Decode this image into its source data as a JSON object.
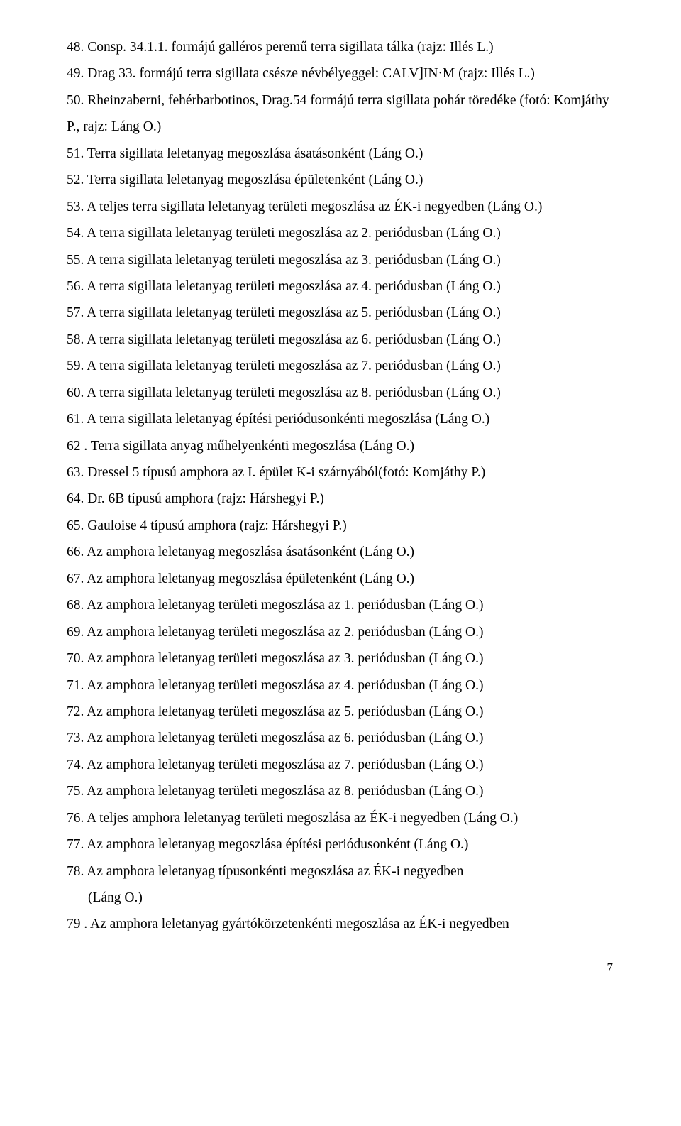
{
  "entries": [
    {
      "text": "48. Consp. 34.1.1. formájú galléros peremű terra sigillata tálka (rajz: Illés L.)"
    },
    {
      "text": "49. Drag 33. formájú terra sigillata csésze névbélyeggel: CALV]IN·M (rajz: Illés L.)"
    },
    {
      "text": "50. Rheinzaberni, fehérbarbotinos, Drag.54 formájú terra sigillata pohár töredéke (fotó: Komjáthy P., rajz: Láng O.)"
    },
    {
      "text": "51. Terra sigillata leletanyag megoszlása ásatásonként (Láng O.)"
    },
    {
      "text": "52. Terra sigillata leletanyag megoszlása épületenként (Láng O.)"
    },
    {
      "text": "53. A teljes terra sigillata leletanyag területi megoszlása az ÉK-i negyedben (Láng O.)"
    },
    {
      "text": "54. A terra sigillata leletanyag területi megoszlása az 2. periódusban (Láng O.)"
    },
    {
      "text": "55. A terra sigillata leletanyag területi megoszlása az 3. periódusban (Láng O.)"
    },
    {
      "text": "56. A terra sigillata leletanyag területi megoszlása az 4. periódusban (Láng O.)"
    },
    {
      "text": "57. A terra sigillata leletanyag területi megoszlása az 5. periódusban (Láng O.)"
    },
    {
      "text": "58. A terra sigillata leletanyag területi megoszlása az 6. periódusban (Láng O.)"
    },
    {
      "text": "59. A terra sigillata leletanyag területi megoszlása az 7. periódusban (Láng O.)"
    },
    {
      "text": "60. A terra sigillata leletanyag területi megoszlása az 8. periódusban (Láng O.)"
    },
    {
      "text": "61. A terra sigillata leletanyag építési periódusonkénti megoszlása (Láng O.)"
    },
    {
      "text": "62 . Terra sigillata anyag műhelyenkénti megoszlása (Láng O.)"
    },
    {
      "text": "63. Dressel 5 típusú amphora az I. épület K-i szárnyából(fotó: Komjáthy P.)"
    },
    {
      "text": "64. Dr. 6B típusú amphora (rajz: Hárshegyi P.)"
    },
    {
      "text": "65. Gauloise 4 típusú amphora (rajz: Hárshegyi P.)"
    },
    {
      "text": "66. Az amphora leletanyag megoszlása ásatásonként  (Láng O.)"
    },
    {
      "text": "67. Az amphora leletanyag megoszlása épületenként (Láng O.)"
    },
    {
      "text": "68. Az amphora leletanyag területi megoszlása az 1. periódusban (Láng O.)"
    },
    {
      "text": "69. Az amphora leletanyag területi megoszlása az 2. periódusban (Láng O.)"
    },
    {
      "text": "70. Az amphora leletanyag területi megoszlása az 3. periódusban (Láng O.)"
    },
    {
      "text": "71. Az amphora leletanyag területi megoszlása az 4. periódusban (Láng O.)"
    },
    {
      "text": "72. Az amphora leletanyag területi megoszlása az 5. periódusban (Láng O.)"
    },
    {
      "text": "73. Az amphora leletanyag területi megoszlása az 6. periódusban (Láng O.)"
    },
    {
      "text": "74. Az amphora leletanyag területi megoszlása az 7. periódusban (Láng O.)"
    },
    {
      "text": "75. Az amphora leletanyag területi megoszlása az 8. periódusban (Láng O.)"
    },
    {
      "text": "76. A teljes amphora leletanyag területi megoszlása az ÉK-i negyedben (Láng O.)"
    },
    {
      "text": "77. Az amphora leletanyag megoszlása építési periódusonként (Láng O.)"
    },
    {
      "text": "78. Az amphora leletanyag típusonkénti megoszlása az ÉK-i negyedben"
    },
    {
      "text": "(Láng O.)",
      "indent": true
    },
    {
      "text": "79 . Az amphora leletanyag gyártókörzetenkénti megoszlása az ÉK-i negyedben"
    }
  ],
  "page_number": "7"
}
